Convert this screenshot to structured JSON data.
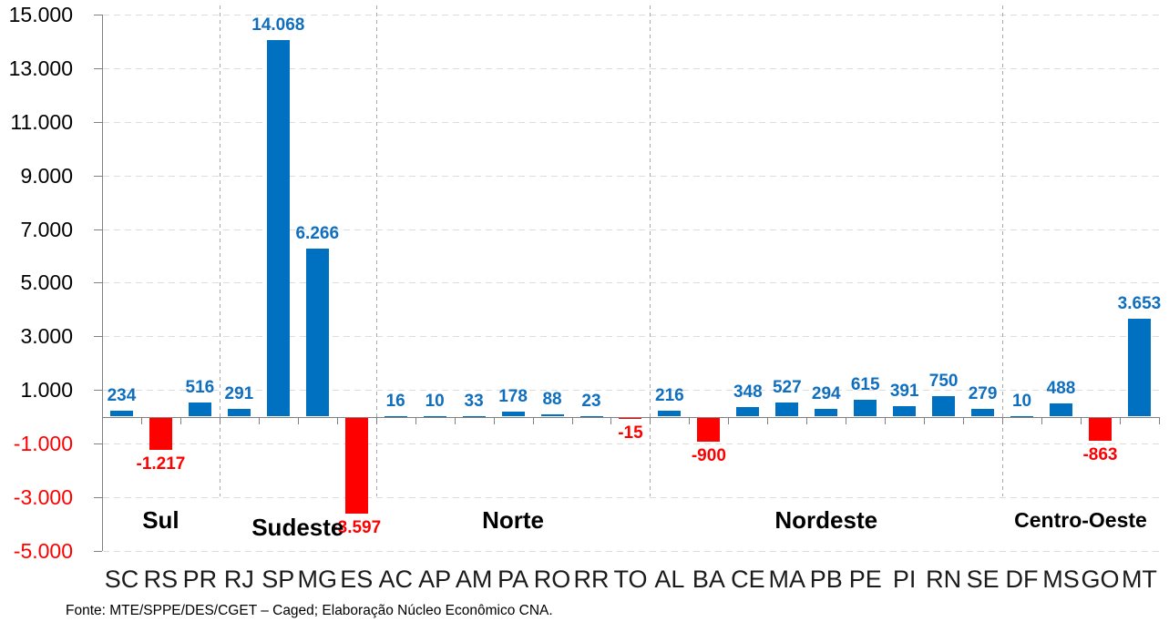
{
  "chart_data": {
    "type": "bar",
    "ylim": [
      -5000,
      15000
    ],
    "grid": "horizontal-dashed",
    "legend": "none",
    "y_ticks": [
      {
        "label": "15.000",
        "value": 15000
      },
      {
        "label": "13.000",
        "value": 13000
      },
      {
        "label": "11.000",
        "value": 11000
      },
      {
        "label": "9.000",
        "value": 9000
      },
      {
        "label": "7.000",
        "value": 7000
      },
      {
        "label": "5.000",
        "value": 5000
      },
      {
        "label": "3.000",
        "value": 3000
      },
      {
        "label": "1.000",
        "value": 1000
      },
      {
        "label": "-1.000",
        "value": -1000
      },
      {
        "label": "-3.000",
        "value": -3000
      },
      {
        "label": "-5.000",
        "value": -5000
      }
    ],
    "categories": [
      "SC",
      "RS",
      "PR",
      "RJ",
      "SP",
      "MG",
      "ES",
      "AC",
      "AP",
      "AM",
      "PA",
      "RO",
      "RR",
      "TO",
      "AL",
      "BA",
      "CE",
      "MA",
      "PB",
      "PE",
      "PI",
      "RN",
      "SE",
      "DF",
      "MS",
      "GO",
      "MT"
    ],
    "values": [
      234,
      -1217,
      516,
      291,
      14068,
      6266,
      -3597,
      16,
      10,
      33,
      178,
      88,
      23,
      -15,
      216,
      -900,
      348,
      527,
      294,
      615,
      391,
      750,
      279,
      10,
      488,
      -863,
      3653
    ],
    "value_labels": [
      "234",
      "-1.217",
      "516",
      "291",
      "14.068",
      "6.266",
      "-3.597",
      "16",
      "10",
      "33",
      "178",
      "88",
      "23",
      "-15",
      "216",
      "-900",
      "348",
      "527",
      "294",
      "615",
      "391",
      "750",
      "279",
      "10",
      "488",
      "-863",
      "3.653"
    ],
    "regions": [
      {
        "name": "Sul",
        "start": 0,
        "end": 2
      },
      {
        "name": "Sudeste",
        "start": 3,
        "end": 6
      },
      {
        "name": "Norte",
        "start": 7,
        "end": 13
      },
      {
        "name": "Nordeste",
        "start": 14,
        "end": 22
      },
      {
        "name": "Centro-Oeste",
        "start": 23,
        "end": 26
      }
    ],
    "colors": {
      "bar_positive": "#0070C0",
      "bar_negative": "#FF0000",
      "label_positive": "#0F6FBE",
      "label_negative": "#FF0000",
      "axis": "#808080",
      "gridline": "#DCDCDC",
      "separator": "#A9A9A9",
      "ytick_negative": "#FF0000",
      "ytick_positive": "#000000"
    },
    "source": "Fonte: MTE/SPPE/DES/CGET – Caged; Elaboração Núcleo Econômico CNA."
  }
}
